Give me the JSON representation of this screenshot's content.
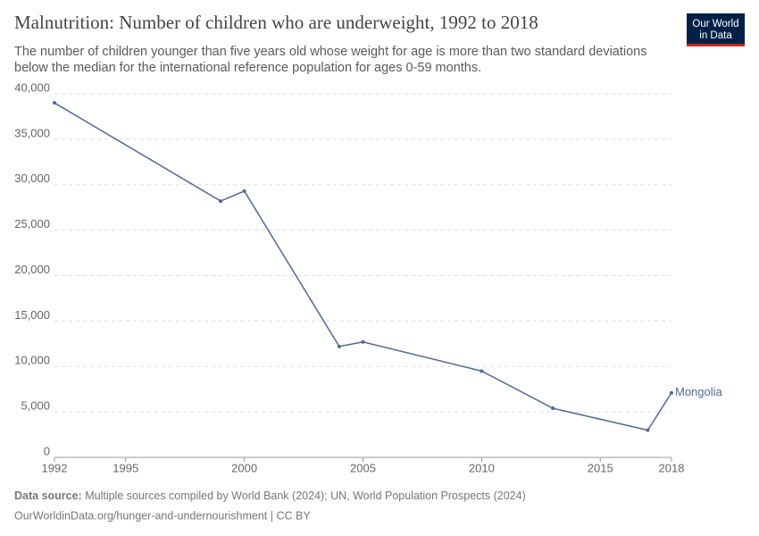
{
  "chart_data": {
    "type": "line",
    "title": "Malnutrition: Number of children who are underweight, 1992 to 2018",
    "subtitle": [
      "The number of children younger than five years old whose weight for age is more than two standard deviations",
      "below the median for the international reference population for ages 0-59 months."
    ],
    "logo": [
      "Our World",
      "in Data"
    ],
    "source": {
      "label": "Data source:",
      "text": "Multiple sources compiled by World Bank (2024); UN, World Population Prospects (2024)"
    },
    "url": "OurWorldinData.org/hunger-and-undernourishment | CC BY",
    "x": [
      1992,
      1999,
      2000,
      2004,
      2005,
      2010,
      2013,
      2017,
      2018
    ],
    "series": [
      {
        "name": "Mongolia",
        "color": "#4c6a9c",
        "values": [
          39000,
          28200,
          29300,
          12200,
          12700,
          9500,
          5400,
          3000,
          7100
        ]
      }
    ],
    "xlim": [
      1992,
      2018
    ],
    "xticks": [
      1992,
      1995,
      2000,
      2005,
      2010,
      2015,
      2018
    ],
    "ylim": [
      0,
      40000
    ],
    "yticks": [
      0,
      {
        "value": 5000,
        "label": "5,000"
      },
      {
        "value": 10000,
        "label": "10,000"
      },
      {
        "value": 15000,
        "label": "15,000"
      },
      {
        "value": 20000,
        "label": "20,000"
      },
      {
        "value": 25000,
        "label": "25,000"
      },
      {
        "value": 30000,
        "label": "30,000"
      },
      {
        "value": 35000,
        "label": "35,000"
      },
      {
        "value": 40000,
        "label": "40,000"
      }
    ],
    "grid": true
  }
}
